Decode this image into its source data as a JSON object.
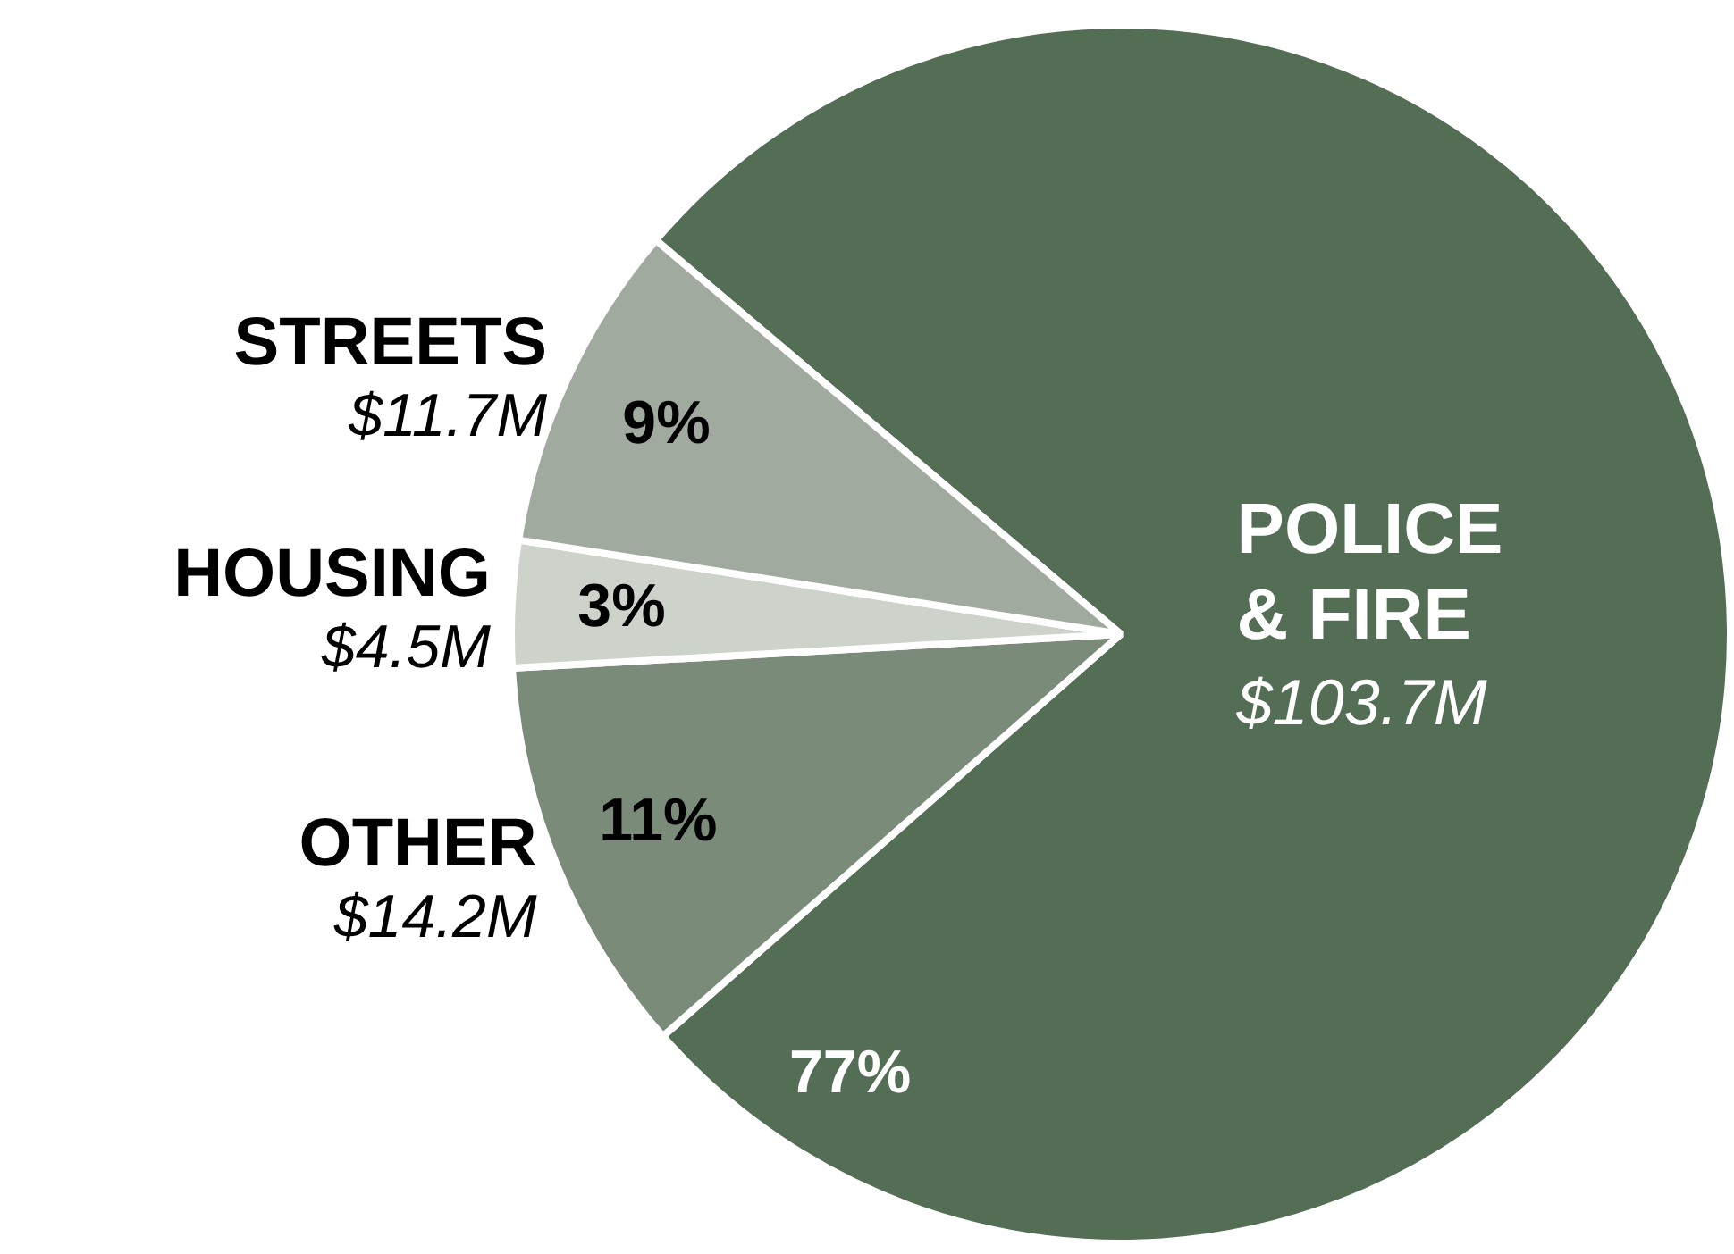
{
  "chart_data": {
    "type": "pie",
    "categories": [
      "POLICE & FIRE",
      "OTHER",
      "HOUSING",
      "STREETS"
    ],
    "values": [
      103.7,
      14.2,
      4.5,
      11.7
    ],
    "colors": [
      "#546e55",
      "#7a8b79",
      "#cdd3cb",
      "#a1aa9f"
    ],
    "value_labels": [
      "$103.7M",
      "$14.2M",
      "$4.5M",
      "$11.7M"
    ],
    "annotations": [
      {
        "text": "77%",
        "x": "POLICE & FIRE"
      },
      {
        "text": "11%",
        "x": "OTHER"
      },
      {
        "text": "3%",
        "x": "HOUSING"
      },
      {
        "text": "9%",
        "x": "STREETS"
      }
    ],
    "legend": false
  }
}
